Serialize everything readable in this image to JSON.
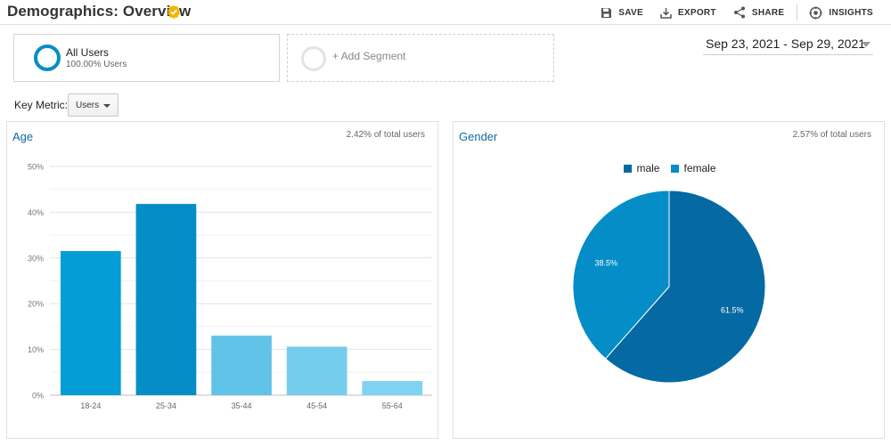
{
  "header": {
    "title": "Demographics: Overview",
    "actions": [
      {
        "label": "SAVE",
        "icon": "save-icon"
      },
      {
        "label": "EXPORT",
        "icon": "export-icon"
      },
      {
        "label": "SHARE",
        "icon": "share-icon"
      },
      {
        "label": "INSIGHTS",
        "icon": "insights-icon"
      }
    ]
  },
  "segments": {
    "all_users_label": "All Users",
    "all_users_pct": "100.00% Users",
    "add_segment_label": "+ Add Segment"
  },
  "date_range": "Sep 23, 2021 - Sep 29, 2021",
  "key_metric": {
    "label": "Key Metric:",
    "value": "Users"
  },
  "colors": {
    "accent": "#058dc7",
    "title_blue": "#13699e",
    "verified": "#f4b400"
  },
  "age_panel": {
    "title": "Age",
    "note": "2.42% of total users"
  },
  "gender_panel": {
    "title": "Gender",
    "note": "2.57% of total users"
  },
  "chart_data": [
    {
      "type": "bar",
      "categories": [
        "18-24",
        "25-34",
        "35-44",
        "45-54",
        "55-64"
      ],
      "values": [
        31.5,
        41.8,
        13.0,
        10.6,
        3.1
      ],
      "bar_colors": [
        "#059dd6",
        "#058dc7",
        "#60c3e7",
        "#75cded",
        "#7fd3f2"
      ],
      "ylim": [
        0,
        50
      ],
      "yticks": [
        "0%",
        "10%",
        "20%",
        "30%",
        "40%",
        "50%"
      ],
      "grid": true
    },
    {
      "type": "pie",
      "labels": [
        "male",
        "female"
      ],
      "values": [
        61.5,
        38.5
      ],
      "value_labels": [
        "61.5%",
        "38.5%"
      ],
      "colors": [
        "#0569a3",
        "#058dc7"
      ],
      "legend": "top-center"
    }
  ]
}
